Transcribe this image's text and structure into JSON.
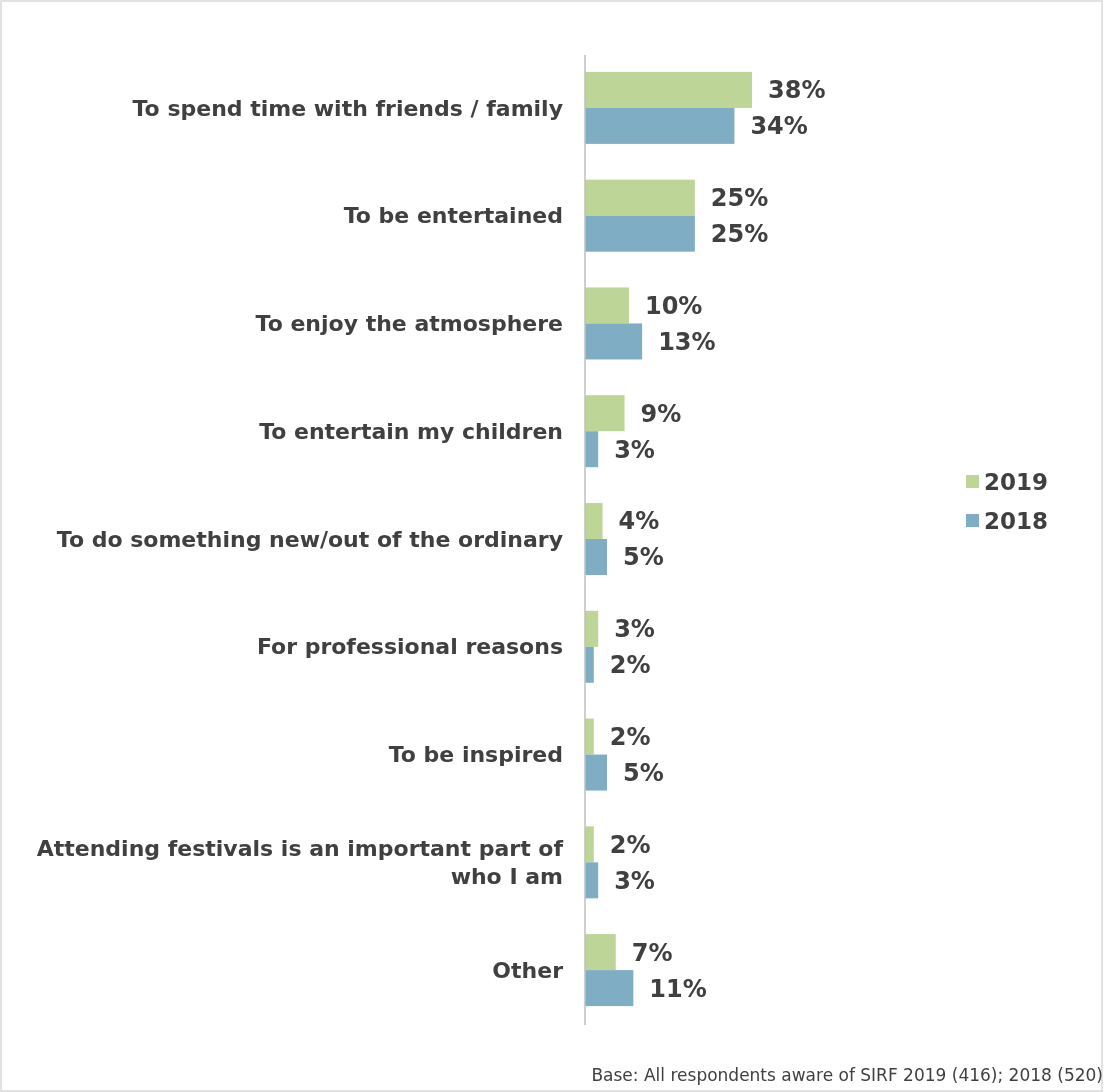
{
  "chart_data": {
    "type": "bar",
    "orientation": "horizontal",
    "categories": [
      "To spend time with friends / family",
      "To be entertained",
      "To enjoy the atmosphere",
      "To entertain my children",
      "To do something new/out of the ordinary",
      "For professional reasons",
      "To be inspired",
      "Attending festivals is an important part of who I am",
      "Other"
    ],
    "series": [
      {
        "name": "2019",
        "color": "#bdd597",
        "values": [
          38,
          25,
          10,
          9,
          4,
          3,
          2,
          2,
          7
        ],
        "value_labels": [
          "38%",
          "25%",
          "10%",
          "9%",
          "4%",
          "3%",
          "2%",
          "2%",
          "7%"
        ]
      },
      {
        "name": "2018",
        "color": "#7faec4",
        "values": [
          34,
          25,
          13,
          3,
          5,
          2,
          5,
          3,
          11
        ],
        "value_labels": [
          "34%",
          "25%",
          "13%",
          "3%",
          "5%",
          "2%",
          "5%",
          "3%",
          "11%"
        ]
      }
    ],
    "legend": "right",
    "annotations": [
      "Base: All respondents aware of SIRF 2019 (416); 2018 (520)"
    ]
  }
}
